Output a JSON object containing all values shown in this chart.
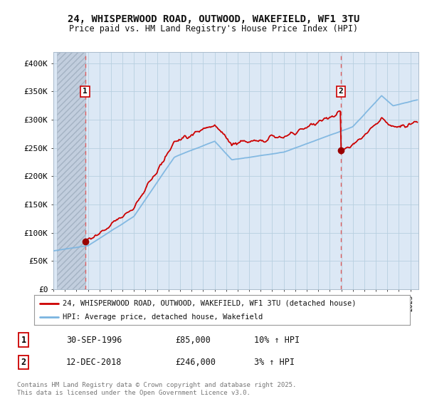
{
  "title1": "24, WHISPERWOOD ROAD, OUTWOOD, WAKEFIELD, WF1 3TU",
  "title2": "Price paid vs. HM Land Registry's House Price Index (HPI)",
  "ylabel_ticks": [
    "£0",
    "£50K",
    "£100K",
    "£150K",
    "£200K",
    "£250K",
    "£300K",
    "£350K",
    "£400K"
  ],
  "ytick_vals": [
    0,
    50000,
    100000,
    150000,
    200000,
    250000,
    300000,
    350000,
    400000
  ],
  "ylim": [
    0,
    420000
  ],
  "xlim_start": 1994.3,
  "xlim_end": 2025.7,
  "sale1_date": 1996.75,
  "sale1_price": 85000,
  "sale2_date": 2018.95,
  "sale2_price": 246000,
  "line_color_house": "#cc0000",
  "line_color_hpi": "#7ab4e0",
  "dot_color_house": "#990000",
  "vline_color": "#e06060",
  "legend1_label": "24, WHISPERWOOD ROAD, OUTWOOD, WAKEFIELD, WF1 3TU (detached house)",
  "legend2_label": "HPI: Average price, detached house, Wakefield",
  "table_row1": [
    "1",
    "30-SEP-1996",
    "£85,000",
    "10% ↑ HPI"
  ],
  "table_row2": [
    "2",
    "12-DEC-2018",
    "£246,000",
    "3% ↑ HPI"
  ],
  "footer": "Contains HM Land Registry data © Crown copyright and database right 2025.\nThis data is licensed under the Open Government Licence v3.0.",
  "bg_color": "#ffffff",
  "plot_bg_color": "#dce8f5",
  "grid_color": "#b8cfe0",
  "hatch_color": "#c0ccdc"
}
